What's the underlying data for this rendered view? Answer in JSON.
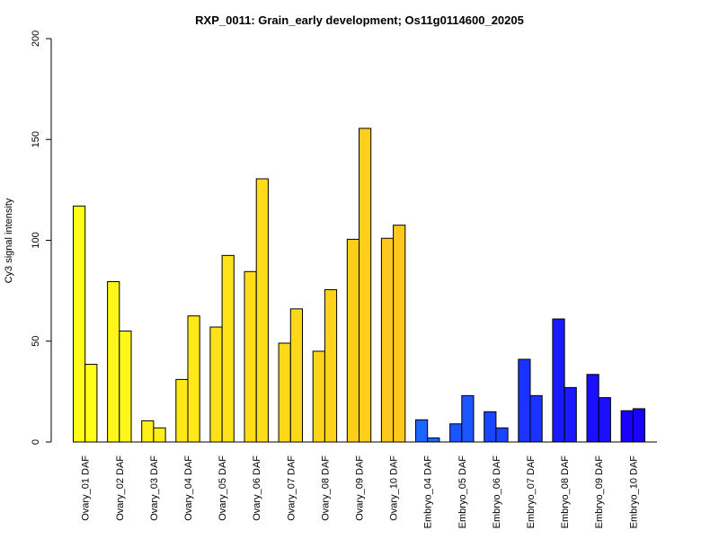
{
  "chart_data": {
    "type": "bar",
    "title": "RXP_0011: Grain_early development; Os11g0114600_20205",
    "xlabel": "",
    "ylabel": "Cy3 signal intensity",
    "ylim": [
      0,
      200
    ],
    "yticks": [
      0,
      50,
      100,
      150,
      200
    ],
    "grid": false,
    "legend": "none",
    "categories": [
      "Ovary_01 DAF",
      "Ovary_02 DAF",
      "Ovary_03 DAF",
      "Ovary_04 DAF",
      "Ovary_05 DAF",
      "Ovary_06 DAF",
      "Ovary_07 DAF",
      "Ovary_08 DAF",
      "Ovary_09 DAF",
      "Ovary_10 DAF",
      "Embryo_04 DAF",
      "Embryo_05 DAF",
      "Embryo_06 DAF",
      "Embryo_07 DAF",
      "Embryo_08 DAF",
      "Embryo_09 DAF",
      "Embryo_10 DAF"
    ],
    "series": [
      {
        "values": [
          117,
          79.5,
          10.5,
          31,
          57,
          84.5,
          49,
          45,
          100.5,
          101,
          11,
          9,
          15,
          41,
          61,
          33.5,
          15.5
        ]
      },
      {
        "values": [
          38.5,
          55,
          7,
          62.5,
          92.5,
          130.5,
          66,
          75.5,
          155.5,
          107.5,
          2,
          23,
          7,
          23,
          27,
          22,
          16.5
        ]
      }
    ],
    "group_colors": [
      "#FFFF1A",
      "#FFF61A",
      "#FFEE1A",
      "#FFE81A",
      "#FFE31A",
      "#FFDD1A",
      "#FFD81A",
      "#FFD31A",
      "#FFCE1A",
      "#FFC81A",
      "#1A66FF",
      "#1A55FF",
      "#1A45FF",
      "#1A33FF",
      "#1A1AFF",
      "#1A0FFF",
      "#1A00FF"
    ]
  }
}
